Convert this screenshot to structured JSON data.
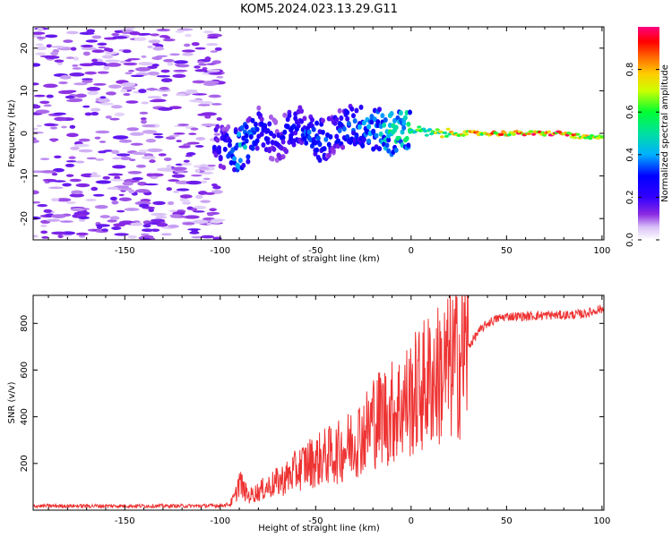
{
  "title": "KOM5.2024.023.13.29.G11",
  "chart_data": [
    {
      "type": "heatmap",
      "xlabel": "Height of straight line (km)",
      "ylabel": "Frequency (Hz)",
      "xlim": [
        -198,
        101
      ],
      "ylim": [
        -25,
        25
      ],
      "xticks": [
        -150,
        -100,
        -50,
        0,
        50,
        100
      ],
      "yticks": [
        -20,
        -10,
        0,
        10,
        20
      ],
      "colorbar": {
        "label": "Normalized spectral amplitude",
        "range": [
          0,
          1
        ],
        "ticks": [
          0.0,
          0.2,
          0.4,
          0.6,
          0.8
        ],
        "colors": [
          "#ffffff",
          "#c9a8f5",
          "#6a00ff",
          "#0000ff",
          "#00bfff",
          "#00ff66",
          "#ffff00",
          "#ff8000",
          "#ff0000",
          "#ff0080"
        ]
      },
      "ridge": {
        "x": [
          -100,
          -90,
          -80,
          -70,
          -60,
          -50,
          -40,
          -30,
          -20,
          -10,
          0,
          10,
          20,
          30,
          40,
          50,
          60,
          70,
          80,
          90,
          100
        ],
        "y": [
          -3,
          -4,
          1,
          -2,
          2,
          -2,
          0,
          2,
          1,
          0,
          1,
          0,
          0,
          0,
          0,
          0,
          0,
          0,
          0,
          -1,
          -1
        ],
        "amplitude": [
          0.25,
          0.45,
          0.3,
          0.25,
          0.3,
          0.35,
          0.3,
          0.35,
          0.4,
          0.5,
          0.55,
          0.6,
          0.7,
          0.8,
          0.75,
          0.8,
          0.85,
          0.9,
          0.85,
          0.8,
          0.65
        ]
      }
    },
    {
      "type": "line",
      "xlabel": "Height of straight line (km)",
      "ylabel": "SNR (v/v)",
      "xlim": [
        -198,
        101
      ],
      "ylim": [
        0,
        920
      ],
      "xticks": [
        -150,
        -100,
        -50,
        0,
        50,
        100
      ],
      "yticks": [
        200,
        400,
        600,
        800
      ],
      "series": [
        {
          "color": "#ee3333",
          "x": [
            -198,
            -150,
            -110,
            -100,
            -95,
            -92,
            -90,
            -88,
            -85,
            -80,
            -75,
            -70,
            -65,
            -60,
            -55,
            -50,
            -45,
            -40,
            -35,
            -30,
            -25,
            -22,
            -20,
            -18,
            -15,
            -12,
            -10,
            -8,
            -5,
            0,
            5,
            10,
            15,
            20,
            25,
            30,
            35,
            40,
            45,
            50,
            60,
            70,
            80,
            90,
            95,
            98,
            100,
            101
          ],
          "y": [
            18,
            18,
            18,
            20,
            25,
            60,
            130,
            90,
            60,
            80,
            100,
            120,
            140,
            170,
            200,
            210,
            230,
            240,
            260,
            300,
            330,
            350,
            400,
            380,
            420,
            400,
            420,
            430,
            450,
            480,
            520,
            560,
            580,
            610,
            650,
            700,
            760,
            800,
            820,
            830,
            830,
            835,
            835,
            840,
            850,
            860,
            860,
            860
          ]
        }
      ]
    }
  ]
}
